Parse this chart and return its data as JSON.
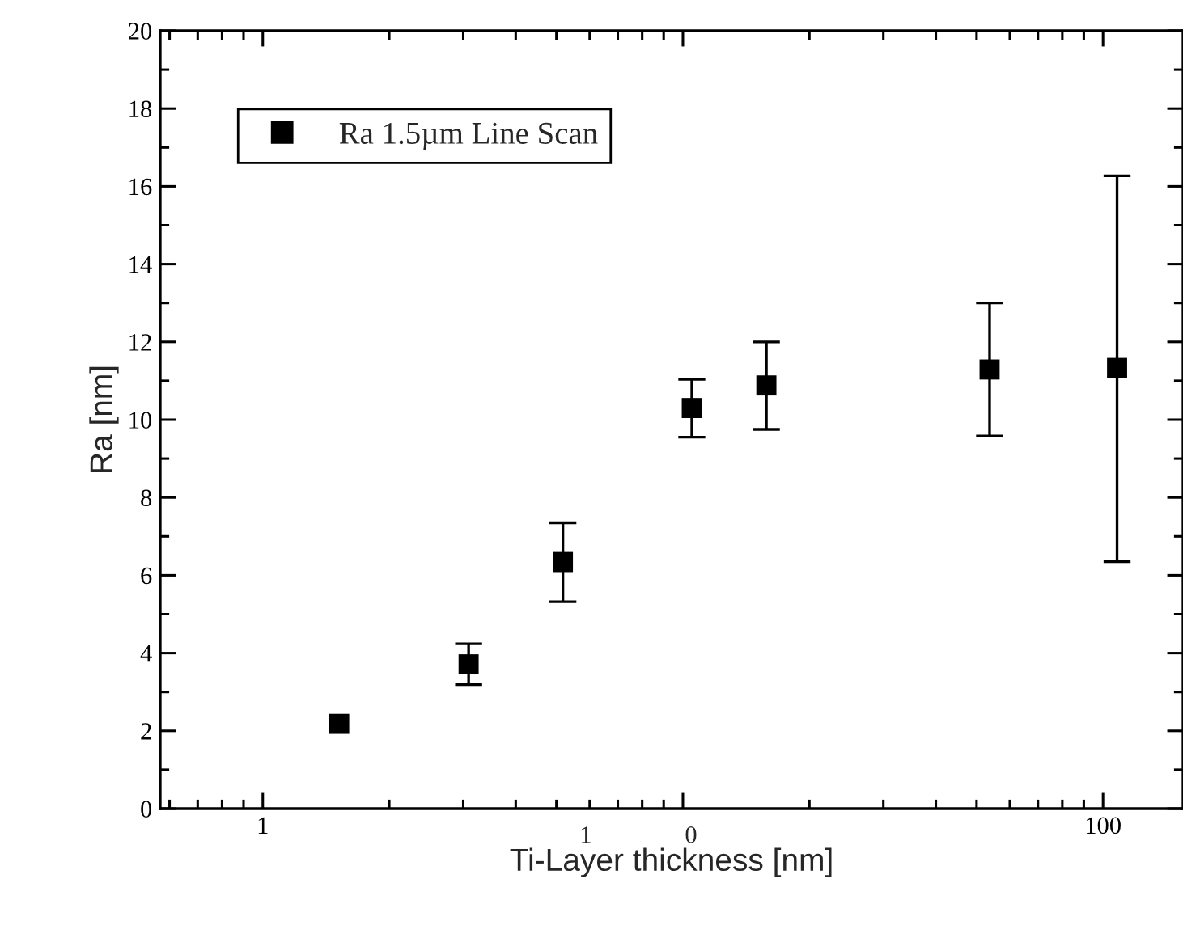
{
  "chart_data": {
    "type": "scatter",
    "xlabel": "Ti-Layer thickness [nm]",
    "ylabel": "Ra [nm]",
    "x": [
      1.52,
      3.09,
      5.18,
      10.5,
      15.8,
      53.7,
      108
    ],
    "series": [
      {
        "name": "Ra 1.5µm Line Scan",
        "color": "#000000",
        "values": [
          2.18,
          3.71,
          6.34,
          10.3,
          10.88,
          11.29,
          11.33
        ],
        "errors": [
          null,
          [
            3.19,
            4.24
          ],
          [
            5.32,
            7.35
          ],
          [
            9.55,
            11.04
          ],
          [
            9.75,
            12.0
          ],
          [
            9.58,
            13.0
          ],
          [
            6.35,
            16.27
          ]
        ]
      }
    ],
    "log": "x",
    "xlim": [
      0.57,
      155
    ],
    "ylim": [
      0,
      20
    ],
    "xticks": [
      1,
      {
        "value": 10,
        "label": null
      },
      100
    ],
    "annotations": [
      "1",
      "0"
    ],
    "yticks": [
      0,
      2,
      4,
      6,
      8,
      10,
      12,
      14,
      16,
      18,
      20
    ],
    "grid": false,
    "legend": "top left",
    "marker": "square"
  }
}
